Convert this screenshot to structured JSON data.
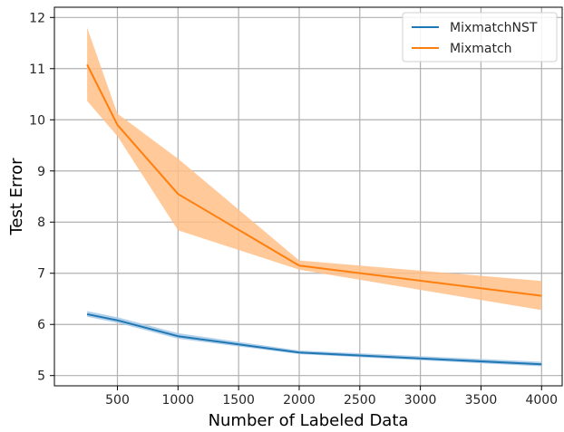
{
  "chart_data": {
    "type": "line",
    "xlabel": "Number of Labeled Data",
    "ylabel": "Test Error",
    "xlim": [
      -20,
      4170
    ],
    "ylim": [
      4.8,
      12.2
    ],
    "xticks": [
      500,
      1000,
      1500,
      2000,
      2500,
      3000,
      3500,
      4000
    ],
    "yticks": [
      5,
      6,
      7,
      8,
      9,
      10,
      11,
      12
    ],
    "grid": true,
    "legend_position": "upper right",
    "x": [
      250,
      500,
      1000,
      2000,
      4000
    ],
    "series": [
      {
        "name": "MixmatchNST",
        "color": "#1f77b4",
        "band_color": "#a6c8e6",
        "values": [
          6.2,
          6.08,
          5.77,
          5.45,
          5.22
        ],
        "lower": [
          6.15,
          6.03,
          5.72,
          5.42,
          5.18
        ],
        "upper": [
          6.26,
          6.14,
          5.83,
          5.49,
          5.27
        ]
      },
      {
        "name": "Mixmatch",
        "color": "#ff7f0e",
        "band_color": "#ffbf87",
        "values": [
          11.08,
          9.9,
          8.55,
          7.15,
          6.56
        ],
        "lower": [
          10.37,
          9.68,
          7.84,
          7.07,
          6.28
        ],
        "upper": [
          11.8,
          10.12,
          9.24,
          7.25,
          6.85
        ]
      }
    ]
  }
}
